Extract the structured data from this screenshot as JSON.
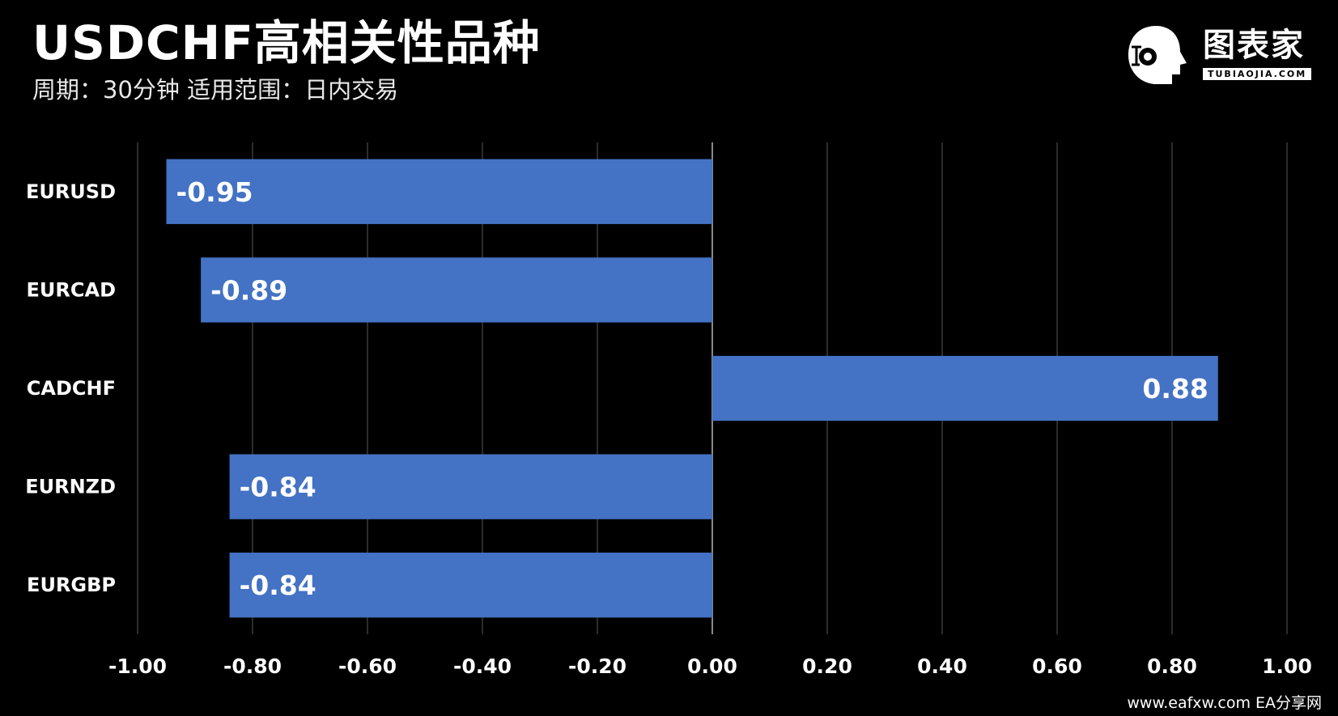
{
  "title": "USDCHF高相关性品种",
  "subtitle": "周期：30分钟  适用范围：日内交易",
  "logo": {
    "icon": "robot-head-icon",
    "text": "图表家",
    "sub": "TUBIAOJIA.COM"
  },
  "footer": "www.eafxw.com   EA分享网",
  "colors": {
    "bar": "#4472C4",
    "background": "#000000",
    "grid": "#3a3a3a",
    "text": "#ffffff"
  },
  "chart_data": {
    "type": "bar",
    "orientation": "horizontal",
    "categories": [
      "EURUSD",
      "EURCAD",
      "CADCHF",
      "EURNZD",
      "EURGBP"
    ],
    "values": [
      -0.95,
      -0.89,
      0.88,
      -0.84,
      -0.84
    ],
    "value_labels": [
      "-0.95",
      "-0.89",
      "0.88",
      "-0.84",
      "-0.84"
    ],
    "xlim": [
      -1.0,
      1.0
    ],
    "x_ticks": [
      -1.0,
      -0.8,
      -0.6,
      -0.4,
      -0.2,
      0.0,
      0.2,
      0.4,
      0.6,
      0.8,
      1.0
    ],
    "x_tick_labels": [
      "-1.00",
      "-0.80",
      "-0.60",
      "-0.40",
      "-0.20",
      "0.00",
      "0.20",
      "0.40",
      "0.60",
      "0.80",
      "1.00"
    ],
    "grid": true,
    "legend": "none"
  }
}
